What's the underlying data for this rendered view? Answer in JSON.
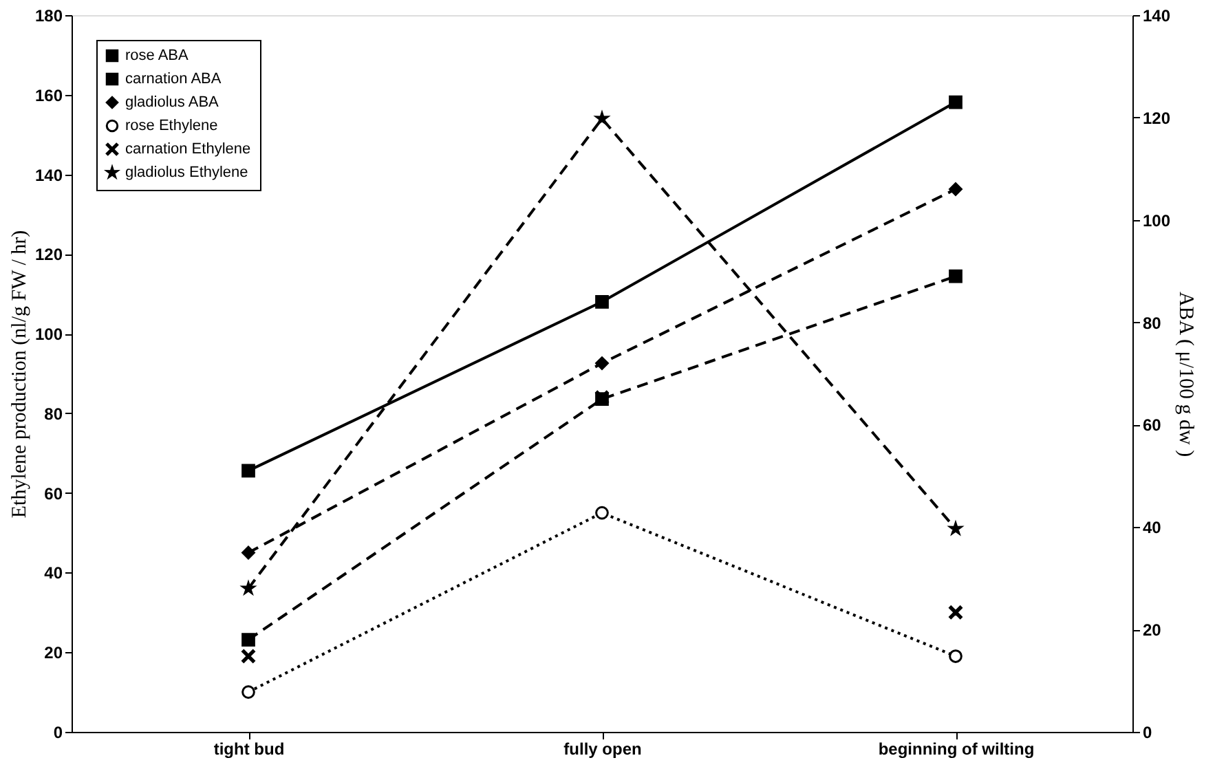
{
  "chart_data": {
    "type": "line",
    "categories": [
      "tight bud",
      "fully open",
      "beginning of wilting"
    ],
    "ylabel": "Ethylene production (nl/g FW / hr)",
    "y2label": "ABA ( μ/100 g dw )",
    "ylim": [
      0,
      180
    ],
    "yticks": [
      0,
      20,
      40,
      60,
      80,
      100,
      120,
      140,
      160,
      180
    ],
    "y2lim": [
      0,
      140
    ],
    "y2ticks": [
      0,
      20,
      40,
      60,
      80,
      100,
      120,
      140
    ],
    "grid": false,
    "legend": "top left",
    "series": [
      {
        "name": "rose ABA",
        "color": "#000000",
        "axis": "y2",
        "marker": "square",
        "line_style": "solid",
        "values": [
          51,
          84,
          123
        ]
      },
      {
        "name": "carnation ABA",
        "color": "#000000",
        "axis": "y2",
        "marker": "square",
        "line_style": "dashed",
        "values": [
          18,
          65,
          89
        ]
      },
      {
        "name": "gladiolus ABA",
        "color": "#000000",
        "axis": "y2",
        "marker": "diamond",
        "line_style": "dashed",
        "values": [
          35,
          72,
          106
        ]
      },
      {
        "name": "rose Ethylene",
        "color": "#000000",
        "axis": "y",
        "marker": "circle",
        "line_style": "dotted",
        "values": [
          10,
          55,
          19
        ]
      },
      {
        "name": "carnation Ethylene",
        "type": "scatter",
        "color": "#000000",
        "axis": "y",
        "marker": "cross",
        "values": [
          19,
          84,
          30
        ]
      },
      {
        "name": "gladiolus Ethylene",
        "color": "#000000",
        "axis": "y",
        "marker": "star",
        "line_style": "dashed",
        "values": [
          36,
          154,
          51
        ]
      }
    ]
  }
}
